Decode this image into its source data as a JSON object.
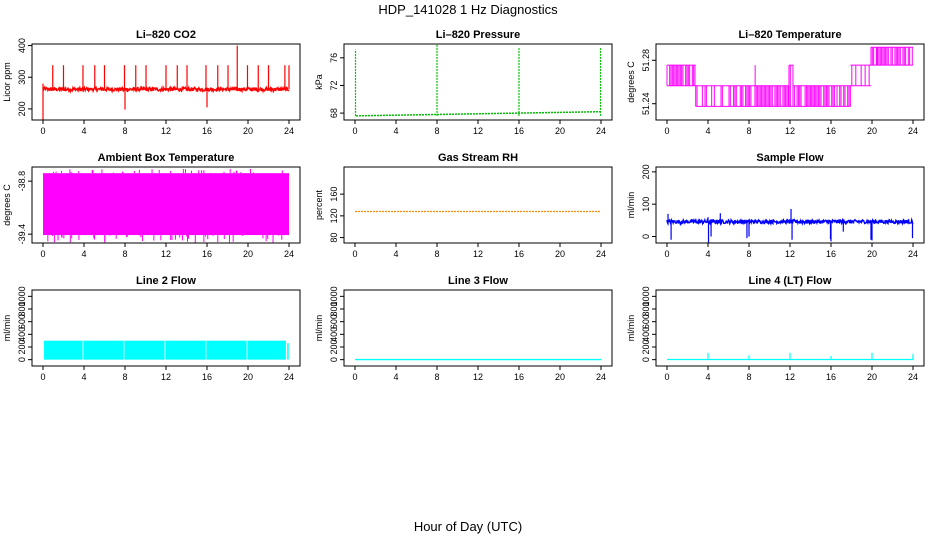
{
  "title": "HDP_141028  1 Hz Diagnostics",
  "xlabel": "Hour of Day (UTC)",
  "chart_data": [
    {
      "type": "line",
      "title": "Li–820 CO2",
      "ylabel": "Licor ppm",
      "color": "#ff0000",
      "xlim": [
        0,
        24
      ],
      "xticks": [
        0,
        4,
        8,
        12,
        16,
        20,
        24
      ],
      "ylim": [
        165,
        405
      ],
      "yticks": [
        200,
        300,
        400
      ],
      "series": [
        {
          "pattern": "co2",
          "baseline": 262,
          "noise": 6,
          "spikes": [
            [
              0,
              160
            ],
            [
              0,
              280
            ],
            [
              0.95,
              338
            ],
            [
              2.0,
              338
            ],
            [
              3.9,
              338
            ],
            [
              5.05,
              338
            ],
            [
              6.0,
              338
            ],
            [
              7.95,
              338
            ],
            [
              8.0,
              198
            ],
            [
              9.05,
              338
            ],
            [
              10.05,
              338
            ],
            [
              12.0,
              338
            ],
            [
              13.1,
              338
            ],
            [
              14.05,
              338
            ],
            [
              15.9,
              338
            ],
            [
              16.0,
              205
            ],
            [
              17.05,
              338
            ],
            [
              18.05,
              338
            ],
            [
              18.95,
              400
            ],
            [
              19.95,
              338
            ],
            [
              21.0,
              338
            ],
            [
              22.0,
              338
            ],
            [
              23.6,
              338
            ],
            [
              24.0,
              338
            ]
          ]
        }
      ]
    },
    {
      "type": "line",
      "title": "Li–820 Pressure",
      "ylabel": "kPa",
      "color": "#00c000",
      "xlim": [
        0,
        24
      ],
      "xticks": [
        0,
        4,
        8,
        12,
        16,
        20,
        24
      ],
      "ylim": [
        67.0,
        78.0
      ],
      "yticks": [
        68,
        72,
        76
      ],
      "series": [
        {
          "pattern": "pressure",
          "start": 67.6,
          "end": 68.2,
          "spikes": [
            [
              0.05,
              77.2
            ],
            [
              8.0,
              78.0
            ],
            [
              16.0,
              77.4
            ],
            [
              23.95,
              77.4
            ]
          ]
        }
      ]
    },
    {
      "type": "line",
      "title": "Li–820 Temperature",
      "ylabel": "degrees C",
      "color": "#ff00ff",
      "xlim": [
        0,
        24
      ],
      "xticks": [
        0,
        4,
        8,
        12,
        16,
        20,
        24
      ],
      "ylim": [
        51.225,
        51.295
      ],
      "yticks": [
        51.24,
        51.28
      ],
      "series": [
        {
          "pattern": "temperature"
        }
      ]
    },
    {
      "type": "area",
      "title": "Ambient Box Temperature",
      "ylabel": "degrees C",
      "color": "#ff00ff",
      "xlim": [
        0,
        24
      ],
      "xticks": [
        0,
        4,
        8,
        12,
        16,
        20,
        24
      ],
      "ylim": [
        -39.5,
        -38.64
      ],
      "yticks": [
        -38.8,
        -39.4
      ],
      "series": [
        {
          "pattern": "band",
          "low": -39.41,
          "high": -38.71,
          "outlier_low": -39.5,
          "outlier_high": -38.66
        }
      ]
    },
    {
      "type": "line",
      "title": "Gas Stream RH",
      "ylabel": "percent",
      "color": "#ff8c00",
      "xlim": [
        0,
        24
      ],
      "xticks": [
        0,
        4,
        8,
        12,
        16,
        20,
        24
      ],
      "ylim": [
        70,
        210
      ],
      "yticks": [
        80,
        120,
        160
      ],
      "series": [
        {
          "pattern": "flat",
          "value": 128
        }
      ]
    },
    {
      "type": "line",
      "title": "Sample Flow",
      "ylabel": "ml/min",
      "color": "#0000ff",
      "xlim": [
        0,
        24
      ],
      "xticks": [
        0,
        4,
        8,
        12,
        16,
        20,
        24
      ],
      "ylim": [
        -20,
        215
      ],
      "yticks": [
        0,
        100,
        200
      ],
      "series": [
        {
          "pattern": "flow",
          "baseline": 46,
          "noise": 6,
          "spikes": [
            [
              0.1,
              70
            ],
            [
              0.4,
              -10
            ],
            [
              4.0,
              60
            ],
            [
              4.05,
              -20
            ],
            [
              4.3,
              0
            ],
            [
              5.2,
              72
            ],
            [
              7.8,
              -5
            ],
            [
              8.0,
              0
            ],
            [
              11.9,
              50
            ],
            [
              12.1,
              85
            ],
            [
              12.2,
              -10
            ],
            [
              15.8,
              40
            ],
            [
              15.95,
              -8
            ],
            [
              16.0,
              -15
            ],
            [
              17.2,
              15
            ],
            [
              19.9,
              -10
            ],
            [
              20.0,
              -12
            ],
            [
              23.95,
              -5
            ]
          ]
        }
      ]
    },
    {
      "type": "area",
      "title": "Line 2 Flow",
      "ylabel": "ml/min",
      "color": "#00ffff",
      "xlim": [
        0,
        24
      ],
      "xticks": [
        0,
        4,
        8,
        12,
        16,
        20,
        24
      ],
      "ylim": [
        -100,
        1100
      ],
      "yticks": [
        0,
        200,
        400,
        600,
        800,
        1000
      ],
      "series": [
        {
          "pattern": "block",
          "value": 300,
          "from": 0.1,
          "to": 23.7,
          "gaps": [
            3.9,
            7.9,
            11.9,
            15.9,
            19.9
          ]
        }
      ]
    },
    {
      "type": "line",
      "title": "Line 3 Flow",
      "ylabel": "ml/min",
      "color": "#00ffff",
      "xlim": [
        0,
        24
      ],
      "xticks": [
        0,
        4,
        8,
        12,
        16,
        20,
        24
      ],
      "ylim": [
        -100,
        1100
      ],
      "yticks": [
        0,
        200,
        400,
        600,
        800,
        1000
      ],
      "series": [
        {
          "pattern": "flat",
          "value": 2
        }
      ]
    },
    {
      "type": "line",
      "title": "Line 4 (LT) Flow",
      "ylabel": "ml/min",
      "color": "#00ffff",
      "xlim": [
        0,
        24
      ],
      "xticks": [
        0,
        4,
        8,
        12,
        16,
        20,
        24
      ],
      "ylim": [
        -100,
        1100
      ],
      "yticks": [
        0,
        200,
        400,
        600,
        800,
        1000
      ],
      "series": [
        {
          "pattern": "flat",
          "value": 3,
          "spikes": [
            [
              4.0,
              110
            ],
            [
              8.0,
              70
            ],
            [
              12.0,
              110
            ],
            [
              16.0,
              60
            ],
            [
              20.0,
              110
            ],
            [
              24.0,
              90
            ]
          ]
        }
      ]
    }
  ]
}
